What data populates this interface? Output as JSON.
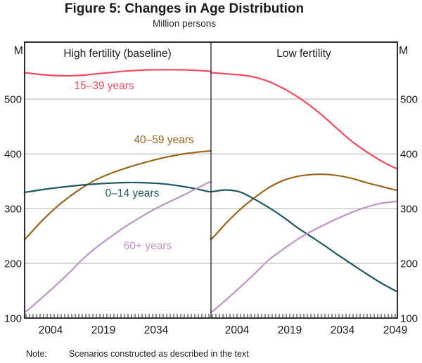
{
  "note": {
    "label": "Note:",
    "text": "Scenarios constructed as described in the text"
  },
  "chart_data": {
    "type": "line",
    "title": "Figure 5: Changes in Age Distribution",
    "subtitle": "Million persons",
    "unit_label": "M",
    "ylim": [
      100,
      604
    ],
    "y_ticks": [
      100,
      200,
      300,
      400,
      500
    ],
    "grid": true,
    "x_range": [
      1996.6,
      2049.6
    ],
    "x": [
      1997,
      2001,
      2005,
      2009,
      2013,
      2017,
      2021,
      2025,
      2029,
      2033,
      2037,
      2041,
      2045,
      2049
    ],
    "panels": [
      {
        "label": "High fertility (baseline)",
        "x_tick_years": [
          2004,
          2019,
          2034
        ],
        "x_tick_labels": [
          "2004",
          "2019",
          "2034"
        ],
        "series": [
          {
            "name": "15–39 years",
            "color": "#f8485e",
            "values": [
              548,
              545,
              543,
              542.5,
              543.5,
              546,
              548.5,
              551,
              552.5,
              553.5,
              553.5,
              553.5,
              552.5,
              551
            ]
          },
          {
            "name": "40–59 years",
            "color": "#9a651a",
            "values": [
              246,
              274,
              299,
              320,
              338,
              353,
              364,
              373,
              381,
              388,
              394,
              399,
              402.5,
              405
            ]
          },
          {
            "name": "0–14 years",
            "color": "#1c5660",
            "values": [
              330,
              334,
              337.5,
              340.5,
              343,
              345,
              346.5,
              347.5,
              347.5,
              346.5,
              344.5,
              341,
              336.5,
              331
            ]
          },
          {
            "name": "60+ years",
            "color": "#bf92c8",
            "values": [
              112,
              134,
              157,
              181,
              207,
              229,
              248,
              266,
              282,
              297,
              310,
              322,
              335,
              348
            ]
          }
        ]
      },
      {
        "label": "Low fertility",
        "x_tick_years": [
          2004,
          2019,
          2034,
          2049
        ],
        "x_tick_labels": [
          "2004",
          "2019",
          "2034",
          "2049"
        ],
        "series": [
          {
            "name": "15–39 years",
            "color": "#f8485e",
            "values": [
              548,
              546,
              544,
              540,
              532,
              520,
              505,
              487,
              466,
              443,
              421,
              403,
              387,
              374
            ]
          },
          {
            "name": "40–59 years",
            "color": "#9a651a",
            "values": [
              246,
              274,
              299,
              320,
              338,
              351,
              358.5,
              362,
              362.5,
              360,
              354.5,
              347,
              340.5,
              334
            ]
          },
          {
            "name": "0–14 years",
            "color": "#1c5660",
            "values": [
              331,
              334,
              330,
              317,
              302,
              285,
              266,
              249,
              232,
              214,
              197,
              180,
              164,
              150
            ]
          },
          {
            "name": "60+ years",
            "color": "#bf92c8",
            "values": [
              112,
              134,
              157,
              181,
              206,
              225,
              243,
              258,
              271,
              283,
              294,
              303,
              309.5,
              313
            ]
          }
        ]
      }
    ],
    "colors": {
      "grid": "#b0b0b0",
      "frame": "#2f2f2f",
      "tick": "#333333",
      "text": "#1a1a1a"
    },
    "legend_position": "inline-labels"
  }
}
